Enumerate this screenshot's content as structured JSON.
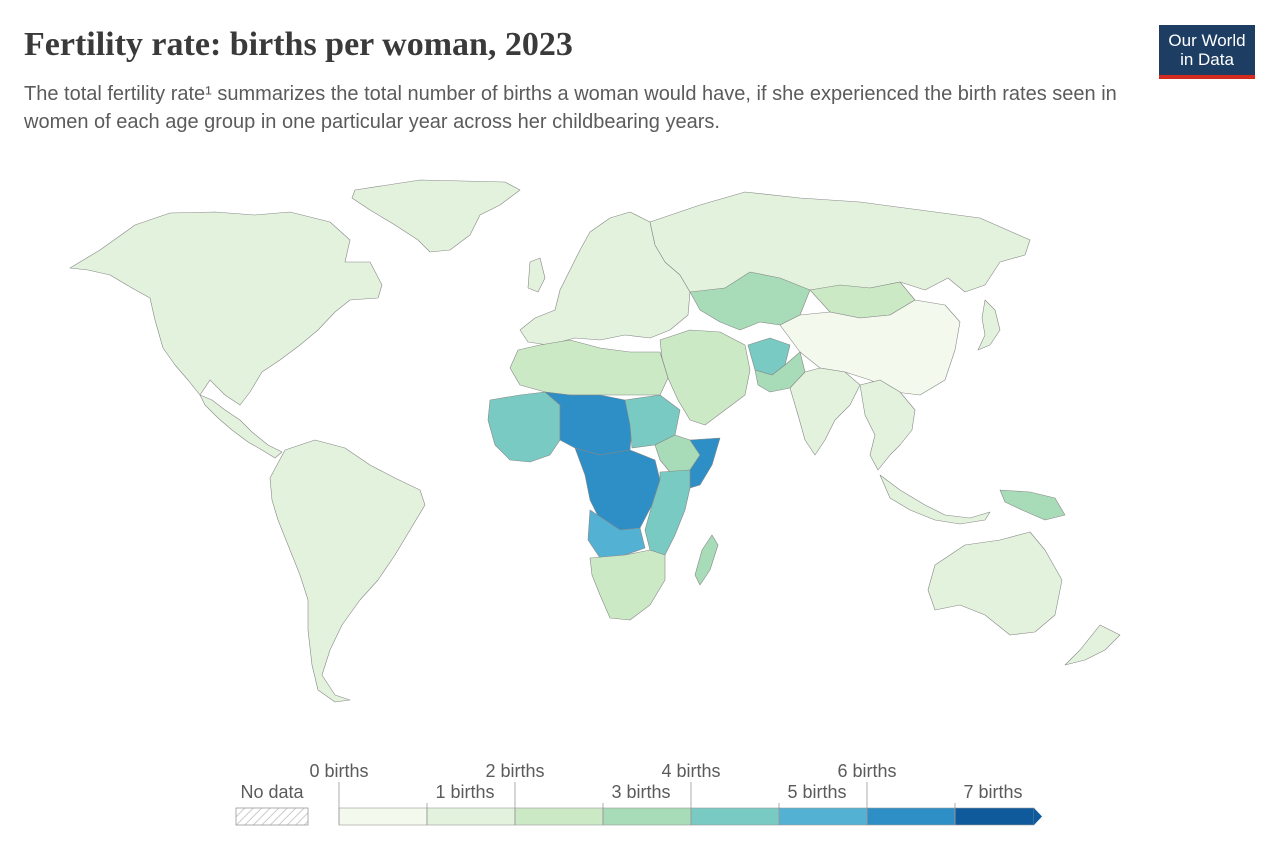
{
  "header": {
    "title": "Fertility rate: births per woman, 2023",
    "subtitle": "The total fertility rate¹ summarizes the total number of births a woman would have, if she experienced the birth rates seen in women of each age group in one particular year across her childbearing years."
  },
  "logo": {
    "line1": "Our World",
    "line2": "in Data"
  },
  "legend": {
    "no_data": "No data",
    "bins": [
      {
        "label": "0 births",
        "color": "#f3f9ec"
      },
      {
        "label": "1 births",
        "color": "#e2f2dc"
      },
      {
        "label": "2 births",
        "color": "#cbe9c5"
      },
      {
        "label": "3 births",
        "color": "#a8dbb7"
      },
      {
        "label": "4 births",
        "color": "#79cac2"
      },
      {
        "label": "5 births",
        "color": "#53b2d4"
      },
      {
        "label": "6 births",
        "color": "#2d8fc6"
      },
      {
        "label": "7 births",
        "color": "#0e5a9a"
      }
    ]
  },
  "chart_data": {
    "type": "choropleth",
    "scale_bins": [
      0,
      1,
      2,
      3,
      4,
      5,
      6,
      7
    ],
    "regions": [
      {
        "name": "North America",
        "bin": "1-2"
      },
      {
        "name": "Greenland",
        "bin": "1-2"
      },
      {
        "name": "South America",
        "bin": "1-2"
      },
      {
        "name": "Europe",
        "bin": "1-2"
      },
      {
        "name": "Russia",
        "bin": "1-2"
      },
      {
        "name": "China",
        "bin": "0-1"
      },
      {
        "name": "Central Asia",
        "bin": "3-4"
      },
      {
        "name": "Middle East",
        "bin": "2-3"
      },
      {
        "name": "India",
        "bin": "1-2"
      },
      {
        "name": "Southeast Asia",
        "bin": "1-2"
      },
      {
        "name": "Australia",
        "bin": "1-2"
      },
      {
        "name": "North Africa",
        "bin": "2-3"
      },
      {
        "name": "West Africa",
        "bin": "4-5"
      },
      {
        "name": "Sahel",
        "bin": "6-7"
      },
      {
        "name": "Central Africa",
        "bin": "6-7"
      },
      {
        "name": "East Africa",
        "bin": "4-5"
      },
      {
        "name": "Somalia",
        "bin": "6-7"
      },
      {
        "name": "Southern Africa",
        "bin": "2-3"
      },
      {
        "name": "Afghanistan",
        "bin": "4-5"
      }
    ]
  }
}
